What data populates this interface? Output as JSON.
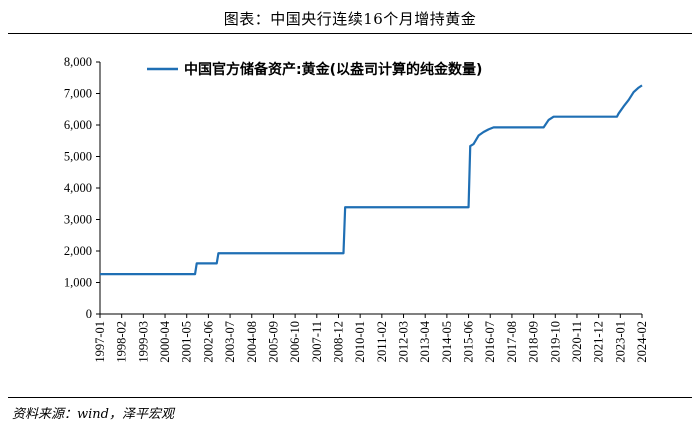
{
  "figure": {
    "title": "图表：中国央行连续16个月增持黄金",
    "source": "资料来源：wind，泽平宏观"
  },
  "chart_data": {
    "type": "line",
    "title": "",
    "xlabel": "",
    "ylabel": "",
    "ylim": [
      0,
      8000
    ],
    "yticks": [
      "0",
      "1,000",
      "2,000",
      "3,000",
      "4,000",
      "5,000",
      "6,000",
      "7,000",
      "8,000"
    ],
    "xticks": [
      "1997-01",
      "1998-02",
      "1999-03",
      "2000-04",
      "2001-05",
      "2002-06",
      "2003-07",
      "2004-08",
      "2005-09",
      "2006-10",
      "2007-11",
      "2008-12",
      "2010-01",
      "2011-02",
      "2012-03",
      "2013-04",
      "2014-05",
      "2015-06",
      "2016-07",
      "2017-08",
      "2018-09",
      "2019-10",
      "2020-11",
      "2021-12",
      "2023-01",
      "2024-02"
    ],
    "grid": false,
    "legend_position": "top",
    "series": [
      {
        "name": "中国官方储备资产:黄金(以盎司计算的纯金数量)",
        "color": "#1f6fb4",
        "points": [
          [
            "1997-01",
            1267
          ],
          [
            "2001-10",
            1267
          ],
          [
            "2001-11",
            1608
          ],
          [
            "2002-11",
            1608
          ],
          [
            "2002-12",
            1929
          ],
          [
            "2009-03",
            1929
          ],
          [
            "2009-04",
            3389
          ],
          [
            "2015-06",
            3389
          ],
          [
            "2015-07",
            5332
          ],
          [
            "2015-09",
            5395
          ],
          [
            "2015-12",
            5666
          ],
          [
            "2016-03",
            5778
          ],
          [
            "2016-06",
            5862
          ],
          [
            "2016-09",
            5924
          ],
          [
            "2019-03",
            5924
          ],
          [
            "2019-06",
            6161
          ],
          [
            "2019-09",
            6264
          ],
          [
            "2022-11",
            6264
          ],
          [
            "2022-12",
            6367
          ],
          [
            "2023-03",
            6592
          ],
          [
            "2023-06",
            6795
          ],
          [
            "2023-09",
            7046
          ],
          [
            "2023-12",
            7187
          ],
          [
            "2024-02",
            7258
          ]
        ]
      }
    ]
  }
}
